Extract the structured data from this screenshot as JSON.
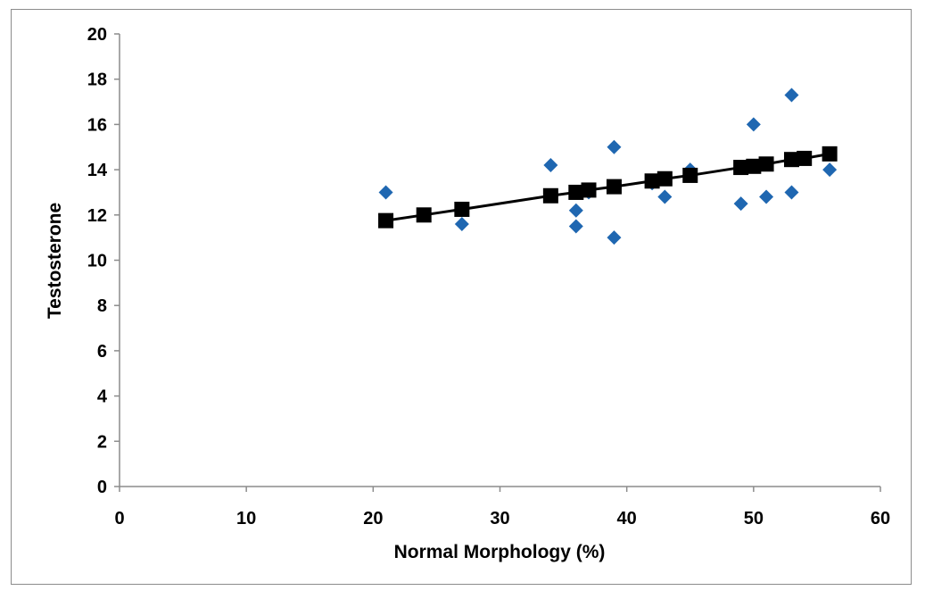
{
  "chart_data": {
    "type": "scatter",
    "title": "",
    "xlabel": "Normal Morphology (%)",
    "ylabel": "Testosterone",
    "xlim": [
      0,
      60
    ],
    "ylim": [
      0,
      20
    ],
    "xticks": [
      0,
      10,
      20,
      30,
      40,
      50,
      60
    ],
    "yticks": [
      0,
      2,
      4,
      6,
      8,
      10,
      12,
      14,
      16,
      18,
      20
    ],
    "grid": false,
    "legend": "none",
    "series": [
      {
        "marker": "diamond",
        "color": "#1f67b1",
        "points": [
          [
            21,
            13.0
          ],
          [
            24,
            12.0
          ],
          [
            27,
            11.6
          ],
          [
            34,
            14.2
          ],
          [
            36,
            12.2
          ],
          [
            36,
            11.5
          ],
          [
            37,
            13.0
          ],
          [
            39,
            15.0
          ],
          [
            39,
            11.0
          ],
          [
            42,
            13.4
          ],
          [
            43,
            12.8
          ],
          [
            45,
            14.0
          ],
          [
            49,
            12.5
          ],
          [
            50,
            16.0
          ],
          [
            51,
            12.8
          ],
          [
            53,
            17.3
          ],
          [
            53,
            13.0
          ],
          [
            54,
            14.5
          ],
          [
            56,
            14.0
          ]
        ]
      },
      {
        "marker": "square",
        "color": "#000000",
        "line": true,
        "points": [
          [
            21,
            11.75
          ],
          [
            24,
            12.0
          ],
          [
            27,
            12.25
          ],
          [
            34,
            12.85
          ],
          [
            36,
            13.0
          ],
          [
            37,
            13.1
          ],
          [
            39,
            13.25
          ],
          [
            42,
            13.5
          ],
          [
            43,
            13.6
          ],
          [
            45,
            13.75
          ],
          [
            49,
            14.1
          ],
          [
            50,
            14.15
          ],
          [
            51,
            14.25
          ],
          [
            53,
            14.45
          ],
          [
            54,
            14.5
          ],
          [
            56,
            14.7
          ]
        ]
      }
    ]
  }
}
